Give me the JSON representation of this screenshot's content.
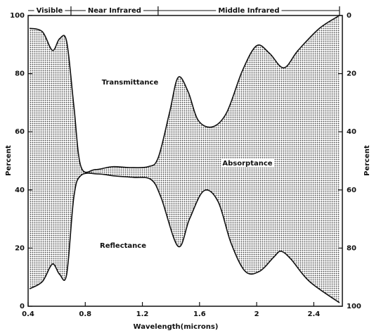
{
  "chart_data": {
    "type": "area-band",
    "xlabel": "Wavelength(microns)",
    "ylabel": "Percent",
    "y2label": "Percent",
    "xlim": [
      0.4,
      2.6
    ],
    "xticks": [
      0.4,
      0.8,
      1.2,
      1.6,
      2.0,
      2.4
    ],
    "ylim": [
      0,
      100
    ],
    "yticks": [
      0,
      20,
      40,
      60,
      80,
      100
    ],
    "y2lim": [
      100,
      0
    ],
    "y2ticks": [
      0,
      20,
      40,
      60,
      80,
      100
    ],
    "regions": [
      {
        "label": "Visible",
        "range": [
          0.4,
          0.7
        ]
      },
      {
        "label": "Near Infrared",
        "range": [
          0.7,
          1.31
        ]
      },
      {
        "label": "Middle Infrared",
        "range": [
          1.31,
          2.58
        ]
      }
    ],
    "annotations": [
      "Transmittance",
      "Absorptance",
      "Reflectance"
    ],
    "series": [
      {
        "color": "#111111",
        "x": [
          0.41,
          0.5,
          0.57,
          0.62,
          0.67,
          0.72,
          0.77,
          0.87,
          0.99,
          1.11,
          1.24,
          1.31,
          1.39,
          1.45,
          1.52,
          1.59,
          1.69,
          1.79,
          1.9,
          2.0,
          2.09,
          2.19,
          2.29,
          2.44,
          2.58
        ],
        "values": [
          95.6,
          94.4,
          88,
          92,
          91,
          69,
          48,
          47,
          48,
          47.7,
          48,
          51,
          66.6,
          78.7,
          73.8,
          64,
          61.7,
          66.6,
          81,
          89.6,
          87,
          82,
          88,
          95.6,
          100
        ]
      },
      {
        "color": "#111111",
        "x": [
          0.41,
          0.5,
          0.57,
          0.62,
          0.67,
          0.72,
          0.77,
          0.89,
          1.01,
          1.14,
          1.26,
          1.33,
          1.45,
          1.53,
          1.63,
          1.73,
          1.82,
          1.92,
          2.02,
          2.12,
          2.17,
          2.24,
          2.37,
          2.58
        ],
        "values": [
          6,
          8.5,
          14.5,
          11,
          11,
          37.5,
          45,
          45.5,
          44.8,
          44.3,
          43.6,
          37.5,
          20.6,
          30,
          39.7,
          36,
          21.8,
          12,
          12,
          16.9,
          18.9,
          16.2,
          8.5,
          1.2
        ]
      }
    ]
  }
}
